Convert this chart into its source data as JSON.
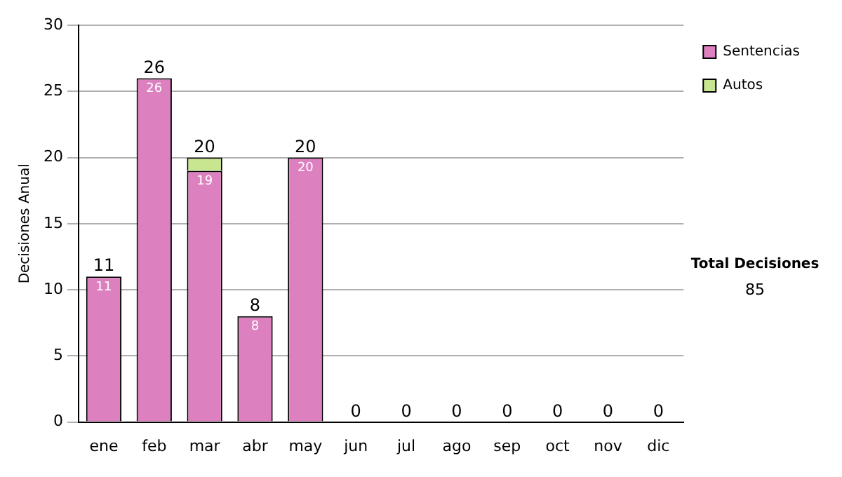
{
  "chart_data": {
    "type": "bar",
    "ylabel": "Decisiones Anual",
    "categories": [
      "ene",
      "feb",
      "mar",
      "abr",
      "may",
      "jun",
      "jul",
      "ago",
      "sep",
      "oct",
      "nov",
      "dic"
    ],
    "series": [
      {
        "name": "Sentencias",
        "color": "#dd80c0",
        "values": [
          11,
          26,
          19,
          8,
          20,
          0,
          0,
          0,
          0,
          0,
          0,
          0
        ],
        "value_labels": [
          "11",
          "26",
          "19",
          "8",
          "20",
          null,
          null,
          null,
          null,
          null,
          null,
          null
        ]
      },
      {
        "name": "Autos",
        "color": "#c8e690",
        "values": [
          0,
          0,
          1,
          0,
          0,
          0,
          0,
          0,
          0,
          0,
          0,
          0
        ]
      }
    ],
    "stacked": true,
    "totals": [
      "11",
      "26",
      "20",
      "8",
      "20",
      "0",
      "0",
      "0",
      "0",
      "0",
      "0",
      "0"
    ],
    "ylim": [
      0,
      30
    ],
    "yticks": [
      0,
      5,
      10,
      15,
      20,
      25,
      30
    ],
    "grid": "y",
    "legend": "right",
    "annotations": [
      "Total Decisiones",
      "85"
    ]
  }
}
